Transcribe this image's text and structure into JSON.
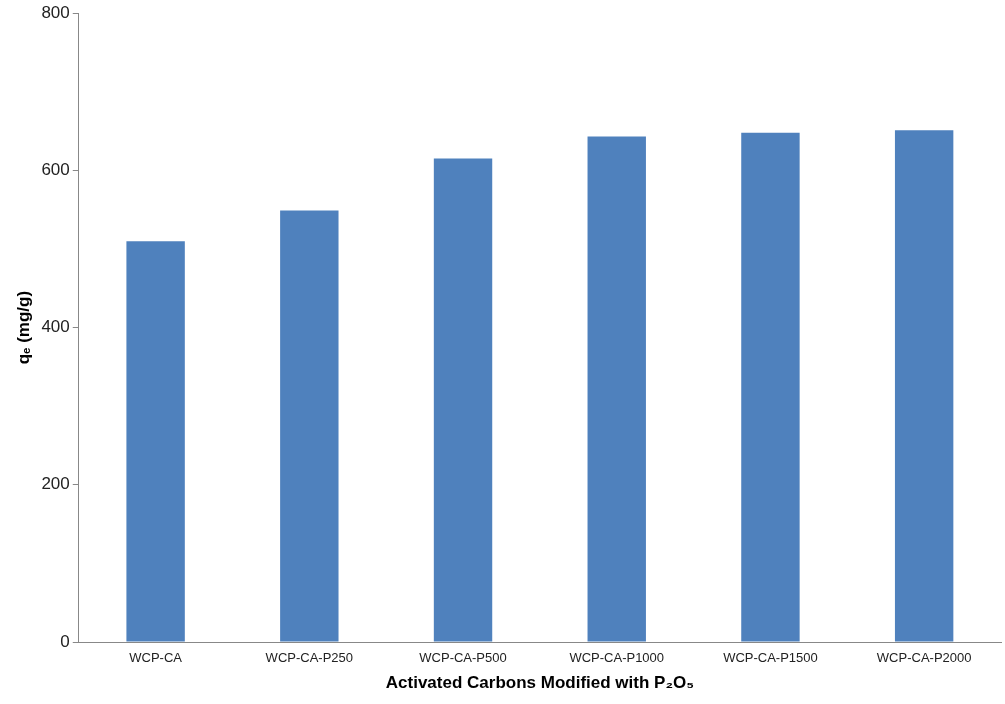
{
  "chart_data": {
    "type": "bar",
    "xlabel": "Activated Carbons Modified with P₂O₅",
    "ylabel": "qₑ (mg/g)",
    "categories": [
      "WCP-CA",
      "WCP-CA-P250",
      "WCP-CA-P500",
      "WCP-CA-P1000",
      "WCP-CA-P1500",
      "WCP-CA-P2000"
    ],
    "values": [
      510,
      549,
      615,
      643,
      648,
      651
    ],
    "color": "#4f81bd",
    "ylim": [
      0,
      800
    ],
    "yticks": [
      0,
      200,
      400,
      600,
      800
    ],
    "grid": false,
    "legend": false
  }
}
